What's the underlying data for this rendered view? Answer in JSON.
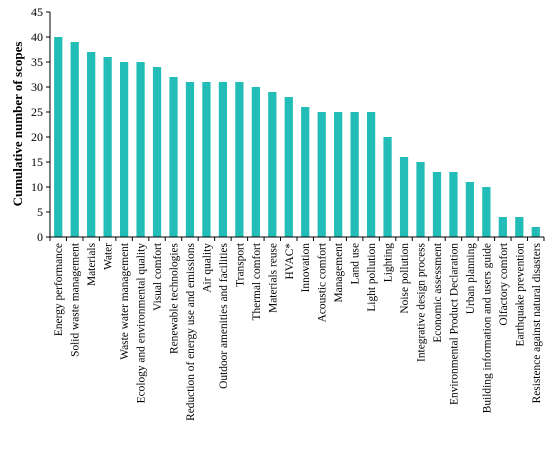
{
  "chart_data": {
    "type": "bar",
    "title": "",
    "xlabel": "",
    "ylabel": "Cumulative number of scopes",
    "ylim": [
      0,
      45
    ],
    "yticks": [
      0,
      5,
      10,
      15,
      20,
      25,
      30,
      35,
      40,
      45
    ],
    "grid": false,
    "legend": "none",
    "bar_color": "#21BDB6",
    "categories": [
      "Energy performance",
      "Solid waste management",
      "Materials",
      "Water",
      "Waste water management",
      "Ecology and environmental quality",
      "Visual comfort",
      "Renewable technologies",
      "Reduction of energy use and emissions",
      "Air quality",
      "Outdoor amenities and facilities",
      "Transport",
      "Thermal comfort",
      "Materials reuse",
      "HVAC*",
      "Innovation",
      "Acoustic comfort",
      "Management",
      "Land use",
      "Light pollution",
      "Lighting",
      "Noise pollution",
      "Integrative design process",
      "Economic assessment",
      "Environmental Product Declaration",
      "Urban planning",
      "Building information and users guide",
      "Olfactory comfort",
      "Earthquake prevention",
      "Resistence against natural disasters"
    ],
    "values": [
      40,
      39,
      37,
      36,
      35,
      35,
      34,
      32,
      31,
      31,
      31,
      31,
      30,
      29,
      28,
      26,
      25,
      25,
      25,
      25,
      20,
      16,
      15,
      13,
      13,
      11,
      10,
      4,
      4,
      2
    ]
  }
}
